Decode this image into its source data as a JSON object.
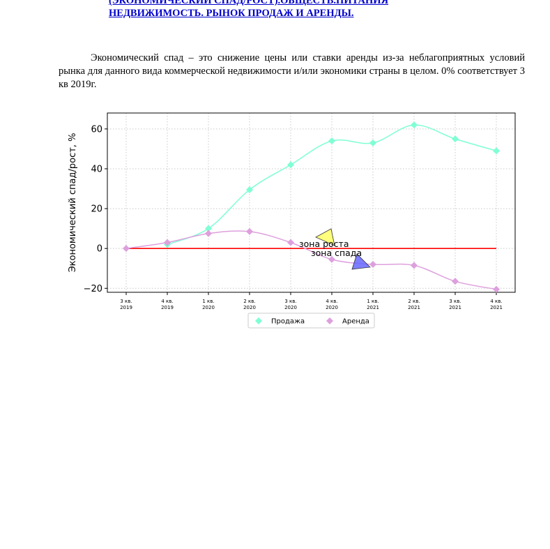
{
  "document": {
    "heading_lines": [
      "(ЭКОНОМИЧЕСКИЙ СПАД/РОСТ).ОБЩЕСТВ.ПИТАНИЯ",
      "НЕДВИЖИМОСТЬ. РЫНОК ПРОДАЖ И АРЕНДЫ."
    ],
    "paragraph": "Экономический спад – это снижение цены или ставки аренды из-за неблагоприятных условий рынка для данного вида коммерческой недвижимости и/или экономики страны в целом. 0% соответствует 3 кв 2019г."
  },
  "chart_data": {
    "type": "line",
    "ylabel": "Экономический спад/рост, %",
    "xlabel": "",
    "ylim": [
      -22,
      68
    ],
    "yticks": [
      -20,
      0,
      20,
      40,
      60
    ],
    "grid": true,
    "legend_position": "bottom-center",
    "categories": [
      [
        "3 кв.",
        "2019"
      ],
      [
        "4 кв.",
        "2019"
      ],
      [
        "1 кв.",
        "2020"
      ],
      [
        "2 кв.",
        "2020"
      ],
      [
        "3 кв.",
        "2020"
      ],
      [
        "4 кв.",
        "2020"
      ],
      [
        "1 кв.",
        "2021"
      ],
      [
        "2 кв.",
        "2021"
      ],
      [
        "3 кв.",
        "2021"
      ],
      [
        "4 кв.",
        "2021"
      ]
    ],
    "series": [
      {
        "name": "Продажа",
        "color": "#7fffd4",
        "values": [
          null,
          2,
          10,
          29.5,
          42,
          54,
          53,
          62,
          55,
          49
        ]
      },
      {
        "name": "Аренда",
        "color": "#dda0dd",
        "values": [
          0,
          3,
          7.5,
          8.5,
          3,
          -5.5,
          -8,
          -8.5,
          -16.5,
          -20.5
        ]
      }
    ],
    "baseline": {
      "value": 0,
      "color": "#ff0000"
    },
    "annotations": [
      {
        "text": "зона роста",
        "marker_color": "#ffff66"
      },
      {
        "text": "зона спада",
        "marker_color": "#6666ff"
      }
    ],
    "legend_marker": "diamond-icon"
  }
}
